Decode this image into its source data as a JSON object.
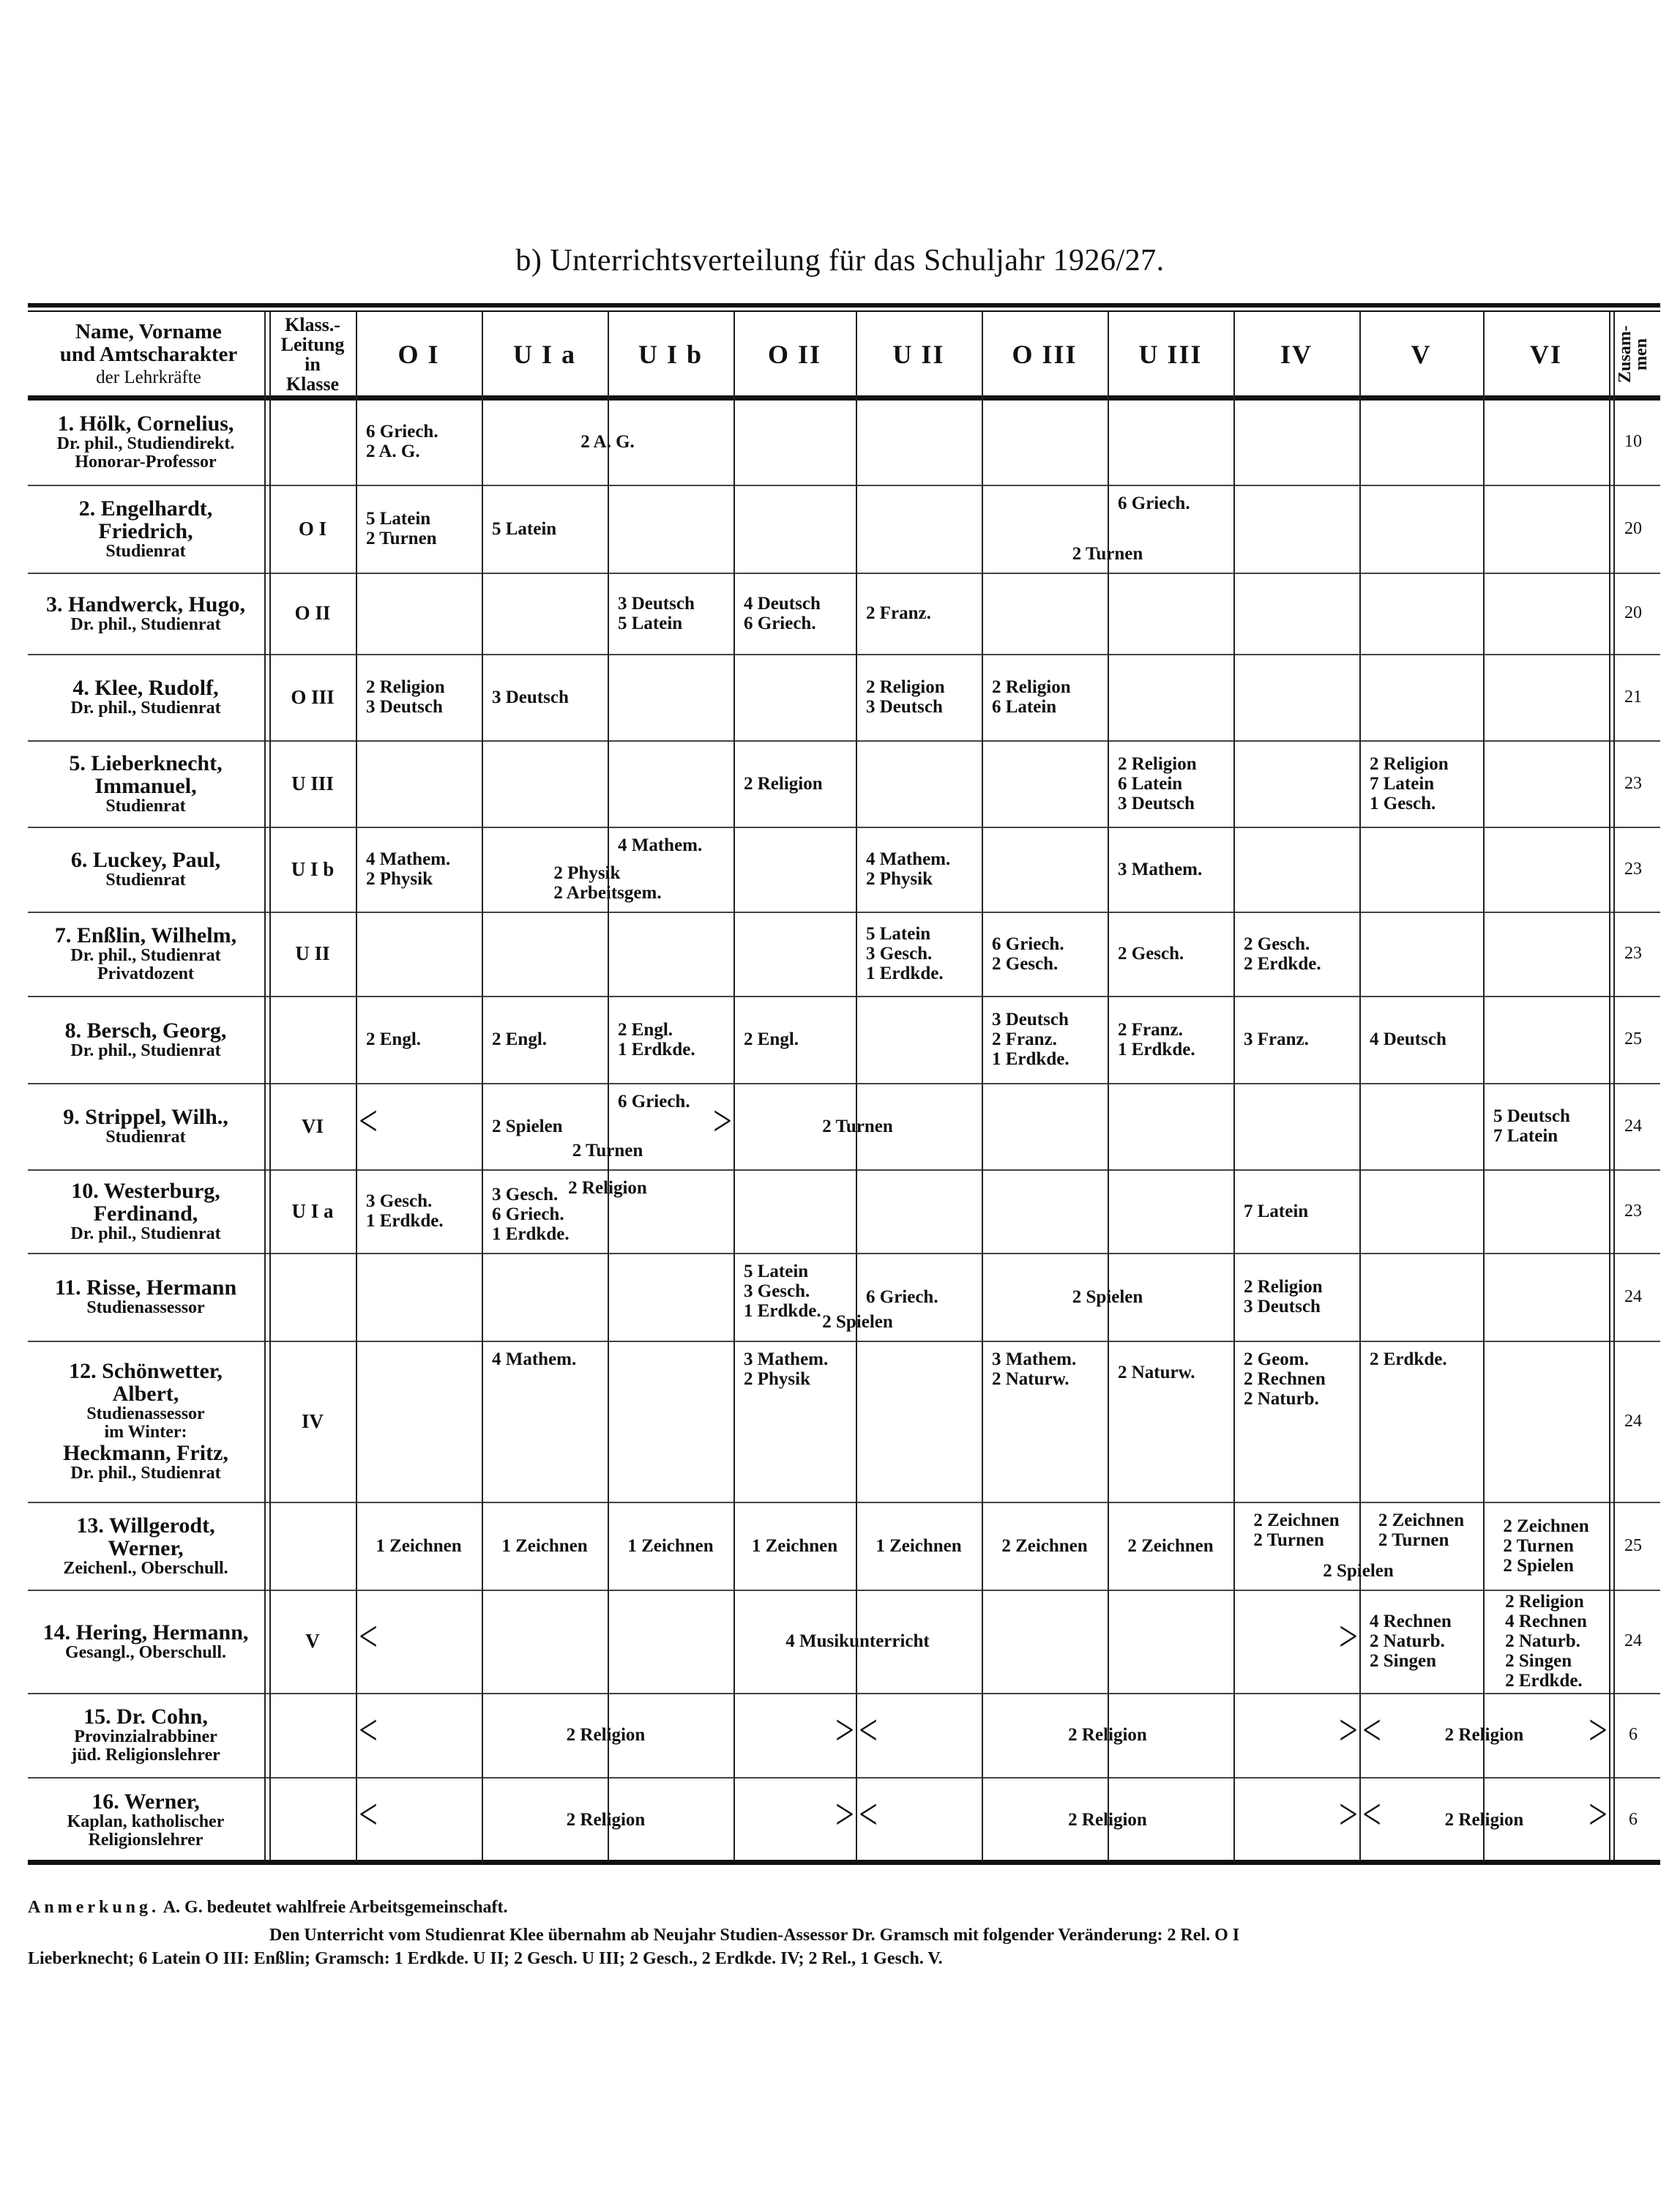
{
  "title": "b)  Unterrichtsverteilung für das Schuljahr 1926/27.",
  "header": {
    "name_lines": [
      "Name, Vorname",
      "und Amtscharakter",
      "der Lehrkräfte"
    ],
    "klass_lines": [
      "Klass.-",
      "Leitung",
      "in",
      "Klasse"
    ],
    "classes": [
      "O I",
      "U I a",
      "U I b",
      "O II",
      "U II",
      "O III",
      "U III",
      "IV",
      "V",
      "VI"
    ],
    "total": "Zusam-men"
  },
  "rows": [
    {
      "name": [
        "1. Hölk, Cornelius,",
        "Dr. phil., Studiendirekt.",
        "Honorar-Professor"
      ],
      "klass": "",
      "total": "10",
      "entries": [
        "6 Griech.\n2 A. G.",
        "2 A. G."
      ]
    },
    {
      "name": [
        "2.    Engelhardt,",
        "Friedrich,",
        "Studienrat"
      ],
      "klass": "O I",
      "total": "20",
      "entries": [
        "5 Latein\n2 Turnen",
        "5 Latein",
        "6 Griech.",
        "2 Turnen"
      ]
    },
    {
      "name": [
        "3. Handwerck, Hugo,",
        "Dr. phil., Studienrat"
      ],
      "klass": "O II",
      "total": "20",
      "entries": [
        "3 Deutsch\n5 Latein",
        "4 Deutsch\n6 Griech.",
        "2 Franz."
      ]
    },
    {
      "name": [
        "4.  Klee, Rudolf,",
        "Dr. phil., Studienrat"
      ],
      "klass": "O III",
      "total": "21",
      "entries": [
        "2 Religion\n3 Deutsch",
        "3 Deutsch",
        "2 Religion\n3 Deutsch",
        "2 Religion\n6 Latein"
      ]
    },
    {
      "name": [
        "5.  Lieberknecht,",
        "Immanuel,",
        "Studienrat"
      ],
      "klass": "U III",
      "total": "23",
      "entries": [
        "2 Religion",
        "2 Religion\n6 Latein\n3 Deutsch",
        "2 Religion\n7 Latein\n1 Gesch."
      ]
    },
    {
      "name": [
        "6.  Luckey, Paul,",
        "Studienrat"
      ],
      "klass": "U I b",
      "total": "23",
      "entries": [
        "4 Mathem.\n2 Physik",
        "4 Mathem.",
        "2 Physik\n2 Arbeitsgem.",
        "4 Mathem.\n2 Physik",
        "3 Mathem."
      ]
    },
    {
      "name": [
        "7. Enßlin, Wilhelm,",
        "Dr. phil., Studienrat",
        "Privatdozent"
      ],
      "klass": "U II",
      "total": "23",
      "entries": [
        "5 Latein\n3 Gesch.\n1 Erdkde.",
        "6 Griech.\n2 Gesch.",
        "2 Gesch.",
        "2 Gesch.\n2 Erdkde."
      ]
    },
    {
      "name": [
        "8.  Bersch, Georg,",
        "Dr. phil., Studienrat"
      ],
      "klass": "",
      "total": "25",
      "entries": [
        "2 Engl.",
        "2 Engl.",
        "2 Engl.\n1 Erdkde.",
        "2 Engl.",
        "3 Deutsch\n2 Franz.\n1 Erdkde.",
        "2 Franz.\n1 Erdkde.",
        "3 Franz.",
        "4 Deutsch"
      ]
    },
    {
      "name": [
        "9.  Strippel, Wilh.,",
        "Studienrat"
      ],
      "klass": "VI",
      "total": "24",
      "entries": [
        "6 Griech.",
        "2 Spielen",
        "2 Turnen",
        "2 Turnen",
        "5 Deutsch\n7 Latein"
      ]
    },
    {
      "name": [
        "10.  Westerburg,",
        "Ferdinand,",
        "Dr. phil., Studienrat"
      ],
      "klass": "U I a",
      "total": "23",
      "entries": [
        "2 Religion",
        "3 Gesch.\n1 Erdkde.",
        "3 Gesch.\n6 Griech.\n1 Erdkde.",
        "7 Latein"
      ]
    },
    {
      "name": [
        "11.  Risse, Hermann",
        "Studienassessor"
      ],
      "klass": "",
      "total": "24",
      "entries": [
        "5 Latein\n3 Gesch.\n1 Erdkde.",
        "2 Spielen",
        "6 Griech.",
        "2 Spielen",
        "2 Religion\n3 Deutsch"
      ]
    },
    {
      "name": [
        "12.  Schönwetter,",
        "Albert,",
        "Studienassessor",
        "im Winter:",
        "Heckmann, Fritz,",
        "Dr. phil., Studienrat"
      ],
      "klass": "IV",
      "total": "24",
      "entries": [
        "4 Mathem.",
        "3 Mathem.\n2 Physik",
        "3 Mathem.\n2 Naturw.",
        "2 Naturw.",
        "2 Geom.\n2 Rechnen\n2 Naturb.",
        "2 Erdkde."
      ]
    },
    {
      "name": [
        "13.  Willgerodt,",
        "Werner,",
        "Zeichenl., Oberschull."
      ],
      "klass": "",
      "total": "25",
      "entries": [
        "1 Zeichnen",
        "1 Zeichnen",
        "1 Zeichnen",
        "1 Zeichnen",
        "1 Zeichnen",
        "2 Zeichnen",
        "2 Zeichnen",
        "2 Zeichnen\n2 Turnen",
        "2 Zeichnen\n2 Turnen",
        "2 Spielen",
        "2 Zeichnen\n2 Turnen\n2 Spielen"
      ]
    },
    {
      "name": [
        "14. Hering, Hermann,",
        "Gesangl., Oberschull."
      ],
      "klass": "V",
      "total": "24",
      "entries": [
        "4 Musikunterricht",
        "4 Rechnen\n2 Naturb.\n2 Singen",
        "2 Religion\n4 Rechnen\n2 Naturb.\n2 Singen\n2 Erdkde."
      ]
    },
    {
      "name": [
        "15.  Dr. Cohn,",
        "Provinzialrabbiner",
        "jüd. Religionslehrer"
      ],
      "klass": "",
      "total": "6",
      "entries": [
        "2 Religion",
        "2 Religion",
        "2 Religion"
      ]
    },
    {
      "name": [
        "16.     Werner,",
        "Kaplan, katholischer",
        "Religionslehrer"
      ],
      "klass": "",
      "total": "6",
      "entries": [
        "2 Religion",
        "2 Religion",
        "2 Religion"
      ]
    }
  ],
  "notes": {
    "label": "Anmerkung.",
    "line1": "A. G. bedeutet wahlfreie Arbeitsgemeinschaft.",
    "line2": "Den Unterricht vom Studienrat Klee übernahm ab Neujahr Studien-Assessor Dr. Gramsch mit folgender Veränderung: 2 Rel. O I",
    "line3": "Lieberknecht; 6 Latein O III: Enßlin; Gramsch: 1 Erdkde. U II; 2 Gesch. U III; 2 Gesch., 2 Erdkde. IV; 2 Rel., 1 Gesch. V."
  }
}
